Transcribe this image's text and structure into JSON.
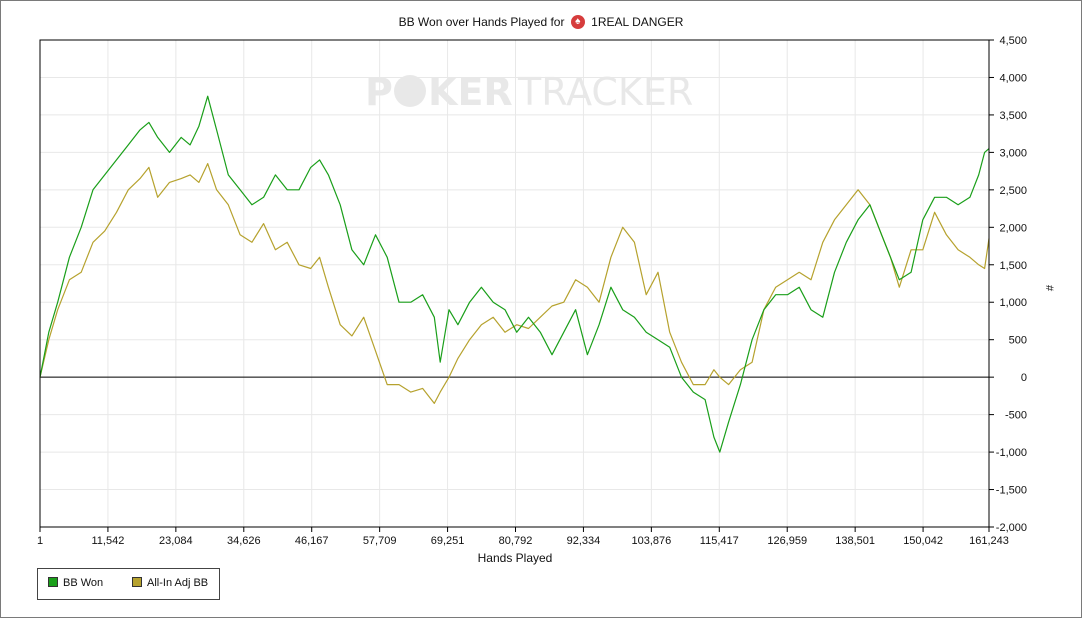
{
  "title": {
    "prefix": "BB Won over Hands Played for",
    "player": "1REAL DANGER"
  },
  "watermark": {
    "left": "P",
    "chip": "O",
    "middle": "KER",
    "right": "TRACKER"
  },
  "colors": {
    "bb_won": "#1a9f1a",
    "allin_adj": "#b6a22e",
    "grid": "#e8e8e8",
    "axis": "#000000"
  },
  "chart_data": {
    "type": "line",
    "title": "BB Won over Hands Played for 1REAL DANGER",
    "xlabel": "Hands Played",
    "ylabel": "#",
    "xlim": [
      1,
      161243
    ],
    "ylim": [
      -2000,
      4500
    ],
    "x_ticks": [
      "1",
      "11,542",
      "23,084",
      "34,626",
      "46,167",
      "57,709",
      "69,251",
      "80,792",
      "92,334",
      "103,876",
      "115,417",
      "126,959",
      "138,501",
      "150,042",
      "161,243"
    ],
    "y_ticks": [
      "4,500",
      "4,000",
      "3,500",
      "3,000",
      "2,500",
      "2,000",
      "1,500",
      "1,000",
      "500",
      "0",
      "-500",
      "-1,000",
      "-1,500",
      "-2,000"
    ],
    "grid": true,
    "legend_position": "bottom-left",
    "series": [
      {
        "name": "BB Won",
        "x": [
          1,
          1500,
          3000,
          5000,
          7000,
          9000,
          11000,
          13000,
          15000,
          17000,
          18500,
          20000,
          22000,
          24000,
          25500,
          27000,
          28500,
          30000,
          32000,
          34000,
          36000,
          38000,
          40000,
          42000,
          44000,
          46000,
          47500,
          49000,
          51000,
          53000,
          55000,
          57000,
          59000,
          61000,
          63000,
          65000,
          67000,
          68000,
          69500,
          71000,
          73000,
          75000,
          77000,
          79000,
          81000,
          83000,
          85000,
          87000,
          89000,
          91000,
          93000,
          95000,
          97000,
          99000,
          101000,
          103000,
          105000,
          107000,
          109000,
          111000,
          113000,
          114500,
          115500,
          117000,
          119000,
          121000,
          123000,
          125000,
          127000,
          129000,
          131000,
          133000,
          135000,
          137000,
          139000,
          141000,
          143000,
          144500,
          146000,
          148000,
          150000,
          152000,
          154000,
          156000,
          158000,
          159500,
          160500,
          161243
        ],
        "values": [
          0,
          600,
          1000,
          1600,
          2000,
          2500,
          2700,
          2900,
          3100,
          3300,
          3400,
          3200,
          3000,
          3200,
          3100,
          3350,
          3750,
          3300,
          2700,
          2500,
          2300,
          2400,
          2700,
          2500,
          2500,
          2800,
          2900,
          2700,
          2300,
          1700,
          1500,
          1900,
          1600,
          1000,
          1000,
          1100,
          800,
          200,
          900,
          700,
          1000,
          1200,
          1000,
          900,
          600,
          800,
          600,
          300,
          600,
          900,
          300,
          700,
          1200,
          900,
          800,
          600,
          500,
          400,
          0,
          -200,
          -300,
          -800,
          -1000,
          -600,
          -100,
          500,
          900,
          1100,
          1100,
          1200,
          900,
          800,
          1400,
          1800,
          2100,
          2300,
          1900,
          1600,
          1300,
          1400,
          2100,
          2400,
          2400,
          2300,
          2400,
          2700,
          3000,
          3050
        ]
      },
      {
        "name": "All-In Adj BB",
        "x": [
          1,
          1500,
          3000,
          5000,
          7000,
          9000,
          11000,
          13000,
          15000,
          17000,
          18500,
          20000,
          22000,
          24000,
          25500,
          27000,
          28500,
          30000,
          32000,
          34000,
          36000,
          38000,
          40000,
          42000,
          44000,
          46000,
          47500,
          49000,
          51000,
          53000,
          55000,
          57000,
          59000,
          61000,
          63000,
          65000,
          67000,
          68000,
          69500,
          71000,
          73000,
          75000,
          77000,
          79000,
          81000,
          83000,
          85000,
          87000,
          89000,
          91000,
          93000,
          95000,
          97000,
          99000,
          101000,
          103000,
          105000,
          107000,
          109000,
          111000,
          113000,
          114500,
          115500,
          117000,
          119000,
          121000,
          123000,
          125000,
          127000,
          129000,
          131000,
          133000,
          135000,
          137000,
          139000,
          141000,
          143000,
          144500,
          146000,
          148000,
          150000,
          152000,
          154000,
          156000,
          158000,
          159500,
          160500,
          161243
        ],
        "values": [
          0,
          500,
          900,
          1300,
          1400,
          1800,
          1950,
          2200,
          2500,
          2650,
          2800,
          2400,
          2600,
          2650,
          2700,
          2600,
          2850,
          2500,
          2300,
          1900,
          1800,
          2050,
          1700,
          1800,
          1500,
          1450,
          1600,
          1200,
          700,
          550,
          800,
          350,
          -100,
          -100,
          -200,
          -150,
          -350,
          -200,
          0,
          250,
          500,
          700,
          800,
          600,
          700,
          650,
          800,
          950,
          1000,
          1300,
          1200,
          1000,
          1600,
          2000,
          1800,
          1100,
          1400,
          600,
          200,
          -100,
          -100,
          100,
          0,
          -100,
          100,
          200,
          900,
          1200,
          1300,
          1400,
          1300,
          1800,
          2100,
          2300,
          2500,
          2300,
          1900,
          1600,
          1200,
          1700,
          1700,
          2200,
          1900,
          1700,
          1600,
          1500,
          1450,
          1850
        ]
      }
    ]
  },
  "legend": {
    "items": [
      {
        "label": "BB Won"
      },
      {
        "label": "All-In Adj BB"
      }
    ]
  }
}
